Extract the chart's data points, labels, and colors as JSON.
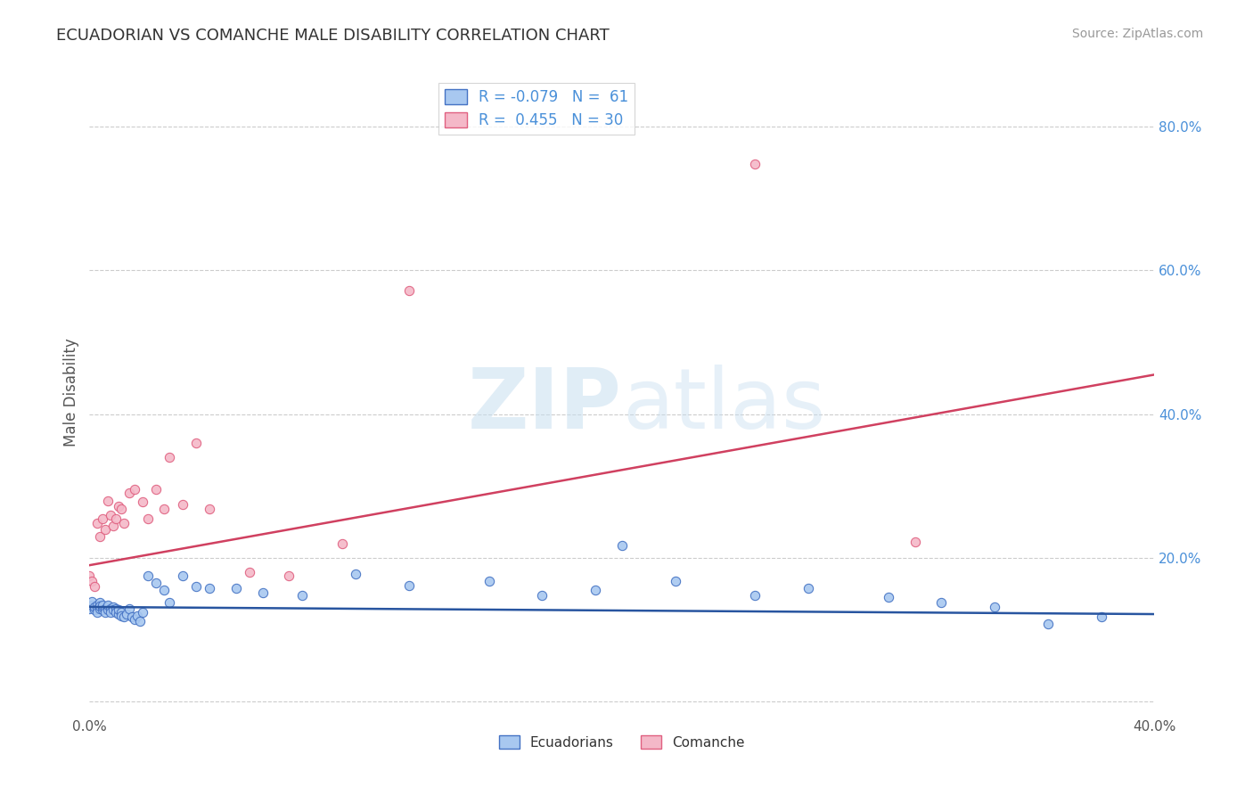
{
  "title": "ECUADORIAN VS COMANCHE MALE DISABILITY CORRELATION CHART",
  "source": "Source: ZipAtlas.com",
  "ylabel": "Male Disability",
  "xlim": [
    0.0,
    0.4
  ],
  "ylim": [
    -0.02,
    0.88
  ],
  "x_ticks": [
    0.0,
    0.05,
    0.1,
    0.15,
    0.2,
    0.25,
    0.3,
    0.35,
    0.4
  ],
  "y_ticks": [
    0.0,
    0.2,
    0.4,
    0.6,
    0.8
  ],
  "grid_color": "#cccccc",
  "background_color": "#ffffff",
  "watermark_zip": "ZIP",
  "watermark_atlas": "atlas",
  "color_blue_dot": "#a8c8f0",
  "color_blue_edge": "#4472c4",
  "color_pink_dot": "#f4b8c8",
  "color_pink_edge": "#e06080",
  "line_color_blue": "#2855a0",
  "line_color_pink": "#d04060",
  "ecuadorians_label": "Ecuadorians",
  "comanche_label": "Comanche",
  "ecu_x": [
    0.0,
    0.001,
    0.001,
    0.002,
    0.002,
    0.003,
    0.003,
    0.003,
    0.004,
    0.004,
    0.004,
    0.005,
    0.005,
    0.005,
    0.006,
    0.006,
    0.007,
    0.007,
    0.007,
    0.008,
    0.008,
    0.009,
    0.009,
    0.01,
    0.01,
    0.011,
    0.011,
    0.012,
    0.012,
    0.013,
    0.014,
    0.015,
    0.016,
    0.017,
    0.018,
    0.019,
    0.02,
    0.022,
    0.025,
    0.028,
    0.03,
    0.035,
    0.04,
    0.045,
    0.055,
    0.065,
    0.08,
    0.1,
    0.12,
    0.15,
    0.17,
    0.19,
    0.2,
    0.22,
    0.25,
    0.27,
    0.3,
    0.32,
    0.34,
    0.36,
    0.38
  ],
  "ecu_y": [
    0.13,
    0.135,
    0.14,
    0.128,
    0.132,
    0.135,
    0.13,
    0.125,
    0.138,
    0.13,
    0.133,
    0.128,
    0.132,
    0.135,
    0.13,
    0.125,
    0.132,
    0.128,
    0.135,
    0.13,
    0.125,
    0.132,
    0.128,
    0.13,
    0.125,
    0.122,
    0.128,
    0.125,
    0.12,
    0.118,
    0.122,
    0.13,
    0.118,
    0.115,
    0.12,
    0.112,
    0.125,
    0.175,
    0.165,
    0.155,
    0.138,
    0.175,
    0.16,
    0.158,
    0.158,
    0.152,
    0.148,
    0.178,
    0.162,
    0.168,
    0.148,
    0.155,
    0.218,
    0.168,
    0.148,
    0.158,
    0.145,
    0.138,
    0.132,
    0.108,
    0.118
  ],
  "com_x": [
    0.0,
    0.001,
    0.002,
    0.003,
    0.004,
    0.005,
    0.006,
    0.007,
    0.008,
    0.009,
    0.01,
    0.011,
    0.012,
    0.013,
    0.015,
    0.017,
    0.02,
    0.022,
    0.025,
    0.028,
    0.03,
    0.035,
    0.04,
    0.045,
    0.06,
    0.075,
    0.095,
    0.12,
    0.25,
    0.31
  ],
  "com_y": [
    0.175,
    0.168,
    0.16,
    0.248,
    0.23,
    0.255,
    0.24,
    0.28,
    0.26,
    0.245,
    0.255,
    0.272,
    0.268,
    0.248,
    0.29,
    0.295,
    0.278,
    0.255,
    0.295,
    0.268,
    0.34,
    0.275,
    0.36,
    0.268,
    0.18,
    0.175,
    0.22,
    0.572,
    0.748,
    0.222
  ],
  "blue_trend_x0": 0.0,
  "blue_trend_y0": 0.132,
  "blue_trend_x1": 0.4,
  "blue_trend_y1": 0.122,
  "pink_trend_x0": 0.0,
  "pink_trend_y0": 0.19,
  "pink_trend_x1": 0.4,
  "pink_trend_y1": 0.455
}
